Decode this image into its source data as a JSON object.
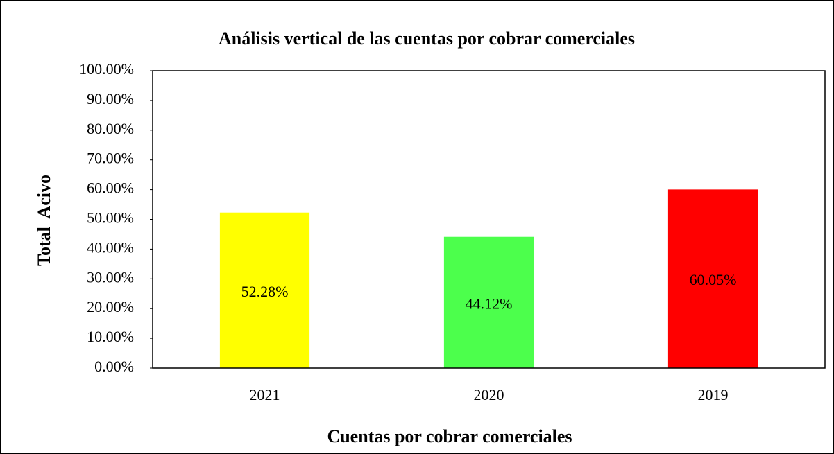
{
  "chart_data": {
    "type": "bar",
    "title": "Análisis vertical de las cuentas por cobrar comerciales",
    "x_label": "Cuentas por cobrar comerciales",
    "y_label": "Total  Acivo",
    "categories": [
      "2021",
      "2020",
      "2019"
    ],
    "values": [
      52.28,
      44.12,
      60.05
    ],
    "value_labels": [
      "52.28%",
      "44.12%",
      "60.05%"
    ],
    "colors": [
      "#ffff00",
      "#4cff4c",
      "#ff0000"
    ],
    "ylim": [
      0,
      100
    ],
    "yticks": [
      {
        "value": 0,
        "label": "0.00%"
      },
      {
        "value": 10,
        "label": "10.00%"
      },
      {
        "value": 20,
        "label": "20.00%"
      },
      {
        "value": 30,
        "label": "30.00%"
      },
      {
        "value": 40,
        "label": "40.00%"
      },
      {
        "value": 50,
        "label": "50.00%"
      },
      {
        "value": 60,
        "label": "60.00%"
      },
      {
        "value": 70,
        "label": "70.00%"
      },
      {
        "value": 80,
        "label": "80.00%"
      },
      {
        "value": 90,
        "label": "90.00%"
      },
      {
        "value": 100,
        "label": "100.00%"
      }
    ],
    "grid": false
  }
}
